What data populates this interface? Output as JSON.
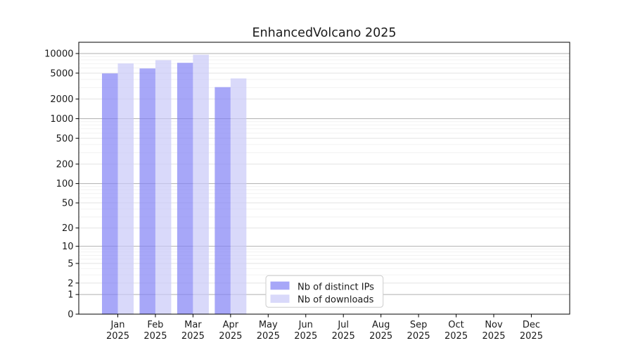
{
  "title": "EnhancedVolcano 2025",
  "chart_data": {
    "type": "bar",
    "title": "EnhancedVolcano 2025",
    "categories": [
      "Jan 2025",
      "Feb 2025",
      "Mar 2025",
      "Apr 2025",
      "May 2025",
      "Jun 2025",
      "Jul 2025",
      "Aug 2025",
      "Sep 2025",
      "Oct 2025",
      "Nov 2025",
      "Dec 2025"
    ],
    "series": [
      {
        "name": "Nb of distinct IPs",
        "color": "#8282f5",
        "alpha": 0.7,
        "values": [
          4950,
          5900,
          7200,
          3050,
          0,
          0,
          0,
          0,
          0,
          0,
          0,
          0
        ]
      },
      {
        "name": "Nb of downloads",
        "color": "#c9c9f8",
        "alpha": 0.7,
        "values": [
          7050,
          7900,
          9600,
          4150,
          0,
          0,
          0,
          0,
          0,
          0,
          0,
          0
        ]
      }
    ],
    "xlabel": "",
    "ylabel": "",
    "yscale": "log1p",
    "yticks": [
      0,
      1,
      2,
      5,
      10,
      20,
      50,
      100,
      200,
      500,
      1000,
      2000,
      5000,
      10000
    ],
    "ylim": [
      0,
      14900
    ],
    "grid": "both",
    "legend_position": "inside lower-center",
    "colors": {
      "grid_major": "#b0b0b0",
      "grid_minor": "#e3e3e3",
      "grid_faint": "#f2f2f2",
      "axis": "#000000",
      "text": "#1a1a1a",
      "legend_border": "#cccccc",
      "background": "#ffffff"
    }
  }
}
